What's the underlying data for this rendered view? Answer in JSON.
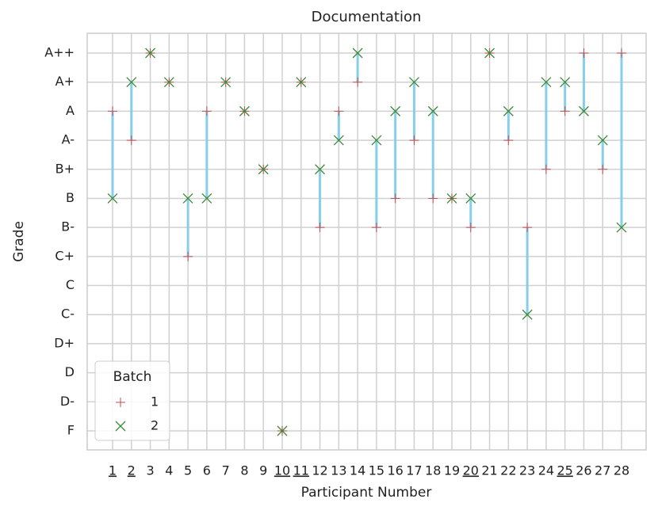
{
  "chart_data": {
    "type": "dumbbell",
    "title": "Documentation",
    "x_label": "Participant Number",
    "y_label": "Grade",
    "categories": [
      "1",
      "2",
      "3",
      "4",
      "5",
      "6",
      "7",
      "8",
      "9",
      "10",
      "11",
      "12",
      "13",
      "14",
      "15",
      "16",
      "17",
      "18",
      "19",
      "20",
      "21",
      "22",
      "23",
      "24",
      "25",
      "26",
      "27",
      "28"
    ],
    "underlined": [
      true,
      true,
      false,
      false,
      false,
      false,
      false,
      false,
      false,
      true,
      true,
      false,
      false,
      false,
      false,
      false,
      false,
      false,
      false,
      true,
      false,
      false,
      false,
      false,
      true,
      false,
      false,
      false
    ],
    "y_categories": [
      "A++",
      "A+",
      "A",
      "A-",
      "B+",
      "B",
      "B-",
      "C+",
      "C",
      "C-",
      "D+",
      "D",
      "D-",
      "F"
    ],
    "legend_title": "Batch",
    "legend_position": "lower left",
    "grid": true,
    "connector_color": "#87ceeb",
    "series": [
      {
        "name": "1",
        "color": "#c44e52",
        "marker": "plus",
        "values": [
          "A",
          "A-",
          "A++",
          "A+",
          "C+",
          "A",
          "A+",
          "A",
          "B+",
          "F",
          "A+",
          "B-",
          "A",
          "A+",
          "B-",
          "B",
          "A-",
          "B",
          "B",
          "B-",
          "A++",
          "A-",
          "B-",
          "B+",
          "A",
          "A++",
          "B+",
          "A++"
        ]
      },
      {
        "name": "2",
        "color": "#3a8a3a",
        "marker": "x",
        "values": [
          "B",
          "A+",
          "A++",
          "A+",
          "B",
          "B",
          "A+",
          "A",
          "B+",
          "F",
          "A+",
          "B+",
          "A-",
          "A++",
          "A-",
          "A",
          "A+",
          "A",
          "B",
          "B",
          "A++",
          "A",
          "C-",
          "A+",
          "A+",
          "A",
          "A-",
          "B-"
        ]
      }
    ]
  }
}
